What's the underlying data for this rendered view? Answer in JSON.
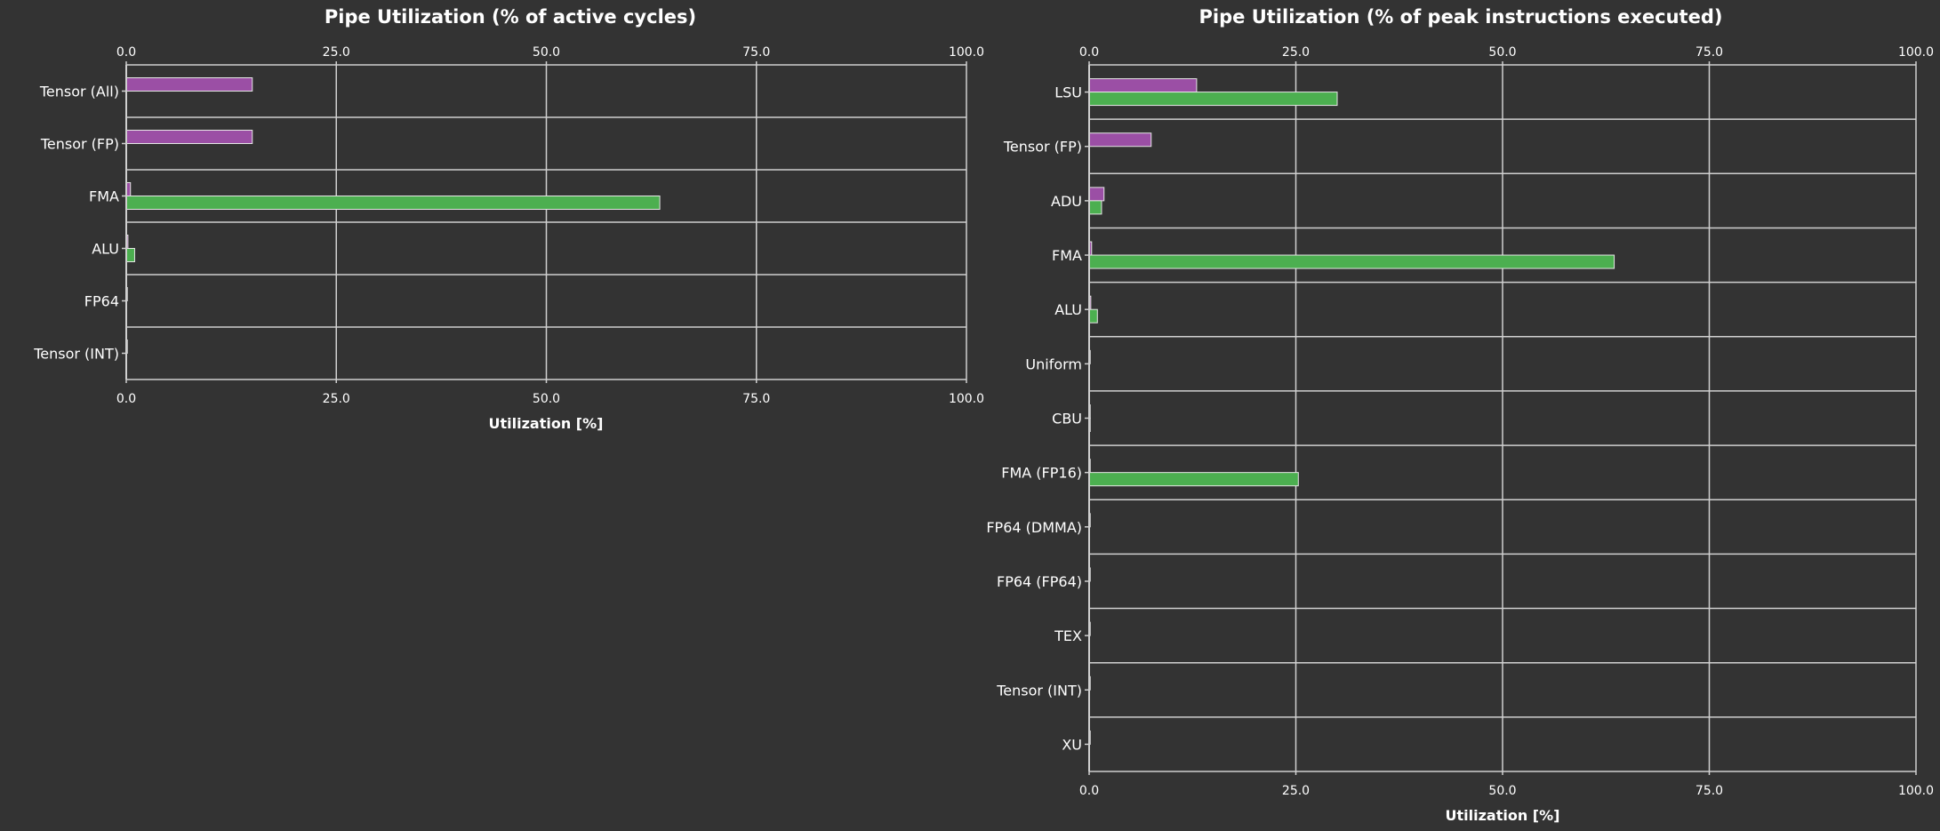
{
  "colors": {
    "background": "#333333",
    "grid": "#d0d0d0",
    "text": "#ffffff",
    "purple": "#9b4fa5",
    "green": "#4caf50",
    "bar_outline": "#e6e6e6"
  },
  "chart_data": [
    {
      "type": "bar",
      "orientation": "horizontal",
      "title": "Pipe Utilization (% of active cycles)",
      "xlabel": "Utilization [%]",
      "ylabel": "",
      "xlim": [
        0,
        100
      ],
      "xticks": [
        "0.0",
        "25.0",
        "50.0",
        "75.0",
        "100.0"
      ],
      "grid": true,
      "categories": [
        "Tensor (All)",
        "Tensor (FP)",
        "FMA",
        "ALU",
        "FP64",
        "Tensor (INT)"
      ],
      "series": [
        {
          "name": "purple",
          "color": "#9b4fa5",
          "values": [
            15.0,
            15.0,
            0.5,
            0.2,
            0.0,
            0.0
          ]
        },
        {
          "name": "green",
          "color": "#4caf50",
          "values": [
            null,
            null,
            63.5,
            1.0,
            null,
            null
          ]
        }
      ]
    },
    {
      "type": "bar",
      "orientation": "horizontal",
      "title": "Pipe Utilization (% of peak instructions executed)",
      "xlabel": "Utilization [%]",
      "ylabel": "",
      "xlim": [
        0,
        100
      ],
      "xticks": [
        "0.0",
        "25.0",
        "50.0",
        "75.0",
        "100.0"
      ],
      "grid": true,
      "categories": [
        "LSU",
        "Tensor (FP)",
        "ADU",
        "FMA",
        "ALU",
        "Uniform",
        "CBU",
        "FMA (FP16)",
        "FP64 (DMMA)",
        "FP64 (FP64)",
        "TEX",
        "Tensor (INT)",
        "XU"
      ],
      "series": [
        {
          "name": "purple",
          "color": "#9b4fa5",
          "values": [
            13.0,
            7.5,
            1.8,
            0.3,
            0.2,
            0.1,
            0.0,
            0.0,
            0.0,
            0.0,
            0.0,
            0.0,
            0.0
          ]
        },
        {
          "name": "green",
          "color": "#4caf50",
          "values": [
            30.0,
            null,
            1.5,
            63.5,
            1.0,
            null,
            0.1,
            25.3,
            null,
            null,
            null,
            null,
            null
          ]
        }
      ]
    }
  ]
}
